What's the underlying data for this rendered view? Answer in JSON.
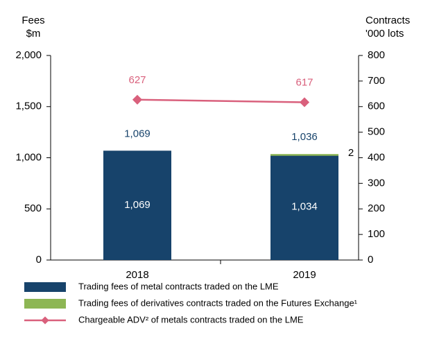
{
  "chart_data": {
    "type": "bar",
    "stacked": true,
    "ylabel": [
      "Fees",
      "$m"
    ],
    "y2label": [
      "Contracts",
      "'000 lots"
    ],
    "categories": [
      "2018",
      "2019"
    ],
    "series": [
      {
        "name": "Trading fees of metal contracts traded on the LME",
        "color": "#17436b",
        "values": [
          1069,
          1034
        ],
        "value_labels": [
          "1,069",
          "1,034"
        ]
      },
      {
        "name": "Trading fees of derivatives contracts traded on the Futures Exchange¹",
        "color": "#8db654",
        "values": [
          null,
          2
        ]
      },
      {
        "name": "Chargeable ADV² of metals contracts traded on the LME",
        "color": "#d9607c",
        "type": "line",
        "axis": "y2",
        "values": [
          627,
          617
        ]
      }
    ],
    "totals": [
      1069,
      1036
    ],
    "total_labels": [
      "1,069",
      "1,036"
    ],
    "ylim": [
      0,
      2000
    ],
    "yticks": [
      0,
      500,
      {
        "value": 1000,
        "label": "1,000"
      },
      {
        "value": 1500,
        "label": "1,500"
      },
      {
        "value": 2000,
        "label": "2,000"
      }
    ],
    "y2lim": [
      0,
      800
    ],
    "y2ticks": [
      0,
      100,
      200,
      300,
      400,
      500,
      600,
      700,
      800
    ],
    "grid": false
  }
}
